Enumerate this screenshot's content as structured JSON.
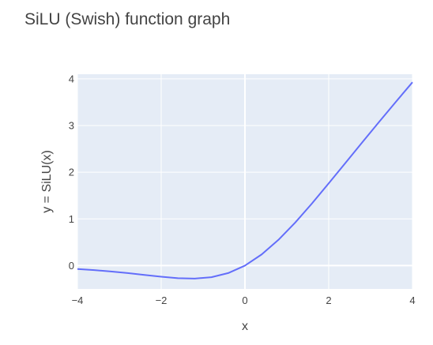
{
  "chart_data": {
    "type": "line",
    "title": "SiLU (Swish) function graph",
    "xlabel": "x",
    "ylabel": "y = SiLU(x)",
    "xlim": [
      -4,
      4
    ],
    "ylim": [
      -0.5,
      4.1
    ],
    "grid": true,
    "x_ticks": [
      -4,
      -2,
      0,
      2,
      4
    ],
    "x_tick_labels": [
      "−4",
      "−2",
      "0",
      "2",
      "4"
    ],
    "y_ticks": [
      0,
      1,
      2,
      3,
      4
    ],
    "y_tick_labels": [
      "0",
      "1",
      "2",
      "3",
      "4"
    ],
    "series": [
      {
        "color": "#636efa",
        "x": [
          -4,
          -3.6,
          -3.2,
          -2.8,
          -2.4,
          -2.0,
          -1.6,
          -1.2,
          -0.8,
          -0.4,
          0,
          0.4,
          0.8,
          1.2,
          1.6,
          2.0,
          2.4,
          2.8,
          3.2,
          3.6,
          4.0
        ],
        "y": [
          -0.072,
          -0.096,
          -0.126,
          -0.16,
          -0.2,
          -0.238,
          -0.269,
          -0.278,
          -0.248,
          -0.16,
          0,
          0.24,
          0.552,
          0.922,
          1.331,
          1.762,
          2.2,
          2.64,
          3.074,
          3.504,
          3.928
        ]
      }
    ]
  }
}
